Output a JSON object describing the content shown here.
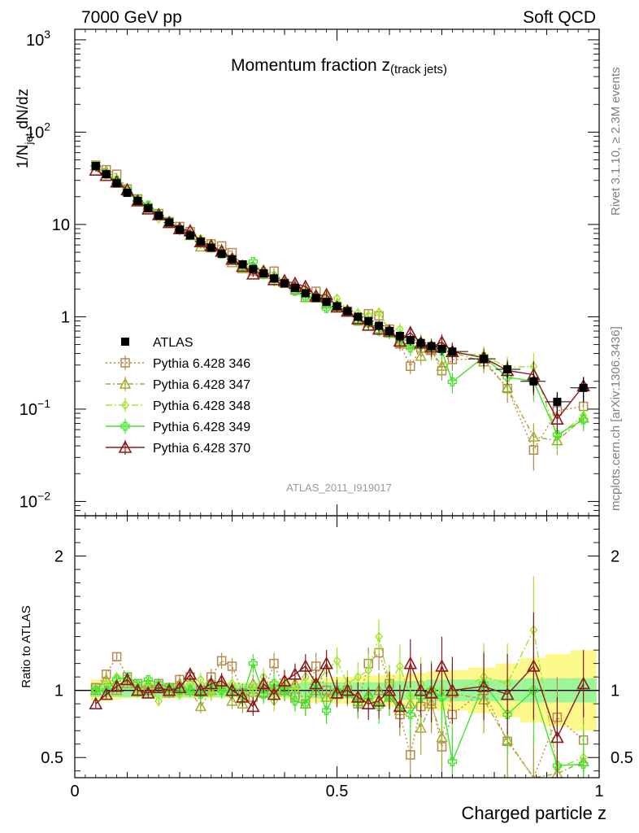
{
  "header": {
    "left": "7000 GeV pp",
    "right": "Soft QCD"
  },
  "side_labels": {
    "rivet": "Rivet 3.1.10, ≥ 2.3M events",
    "mcplots": "mcplots.cern.ch [arXiv:1306.3436]"
  },
  "colors": {
    "atlas": "#000000",
    "p346": "#b58a4a",
    "p347": "#a7a62c",
    "p348": "#9ee62a",
    "p349": "#3ee628",
    "p370": "#8b1a1a",
    "band_inner": "#9df59a",
    "band_outer": "#fcf98a"
  },
  "chart_data": {
    "type": "line",
    "title_main": "Momentum fraction ",
    "title_var": "z",
    "title_sub": "(track jets)",
    "ylabel_top": "1/N",
    "ylabel_sub": "jet",
    "ylabel_rest": " dN/dz",
    "ylabel_ratio": "Ratio to ATLAS",
    "xlabel": "Charged particle z",
    "analysis_id": "ATLAS_2011_I919017",
    "xlim": [
      0,
      1
    ],
    "ylim_main": [
      0.007,
      1300
    ],
    "yscale_main": "log",
    "ylim_ratio": [
      0.35,
      2.3
    ],
    "x_ticks": [
      "0",
      "0.5",
      "1"
    ],
    "y_ticks_main": [
      "10^-2",
      "10^-1",
      "1",
      "10",
      "10^2",
      "10^3"
    ],
    "y_ticks_ratio": [
      "0.5",
      "1",
      "2"
    ],
    "legend_position": "middle-left",
    "x": [
      0.04,
      0.06,
      0.08,
      0.1,
      0.12,
      0.14,
      0.16,
      0.18,
      0.2,
      0.22,
      0.24,
      0.26,
      0.28,
      0.3,
      0.32,
      0.34,
      0.36,
      0.38,
      0.4,
      0.42,
      0.44,
      0.46,
      0.48,
      0.5,
      0.52,
      0.54,
      0.56,
      0.58,
      0.6,
      0.62,
      0.64,
      0.66,
      0.68,
      0.7,
      0.72,
      0.78,
      0.825,
      0.875,
      0.92,
      0.97
    ],
    "atlas": [
      43,
      35,
      28,
      22,
      18,
      15,
      12.5,
      10.5,
      8.8,
      7.6,
      6.5,
      5.6,
      4.8,
      4.2,
      3.7,
      3.3,
      2.95,
      2.6,
      2.3,
      2.05,
      1.8,
      1.6,
      1.45,
      1.3,
      1.15,
      1.0,
      0.9,
      0.8,
      0.7,
      0.62,
      0.56,
      0.52,
      0.48,
      0.45,
      0.42,
      0.35,
      0.27,
      0.2,
      0.12,
      0.17
    ],
    "band_inner": [
      0.05,
      0.05,
      0.05,
      0.05,
      0.05,
      0.05,
      0.05,
      0.05,
      0.05,
      0.05,
      0.05,
      0.05,
      0.05,
      0.05,
      0.05,
      0.05,
      0.05,
      0.05,
      0.05,
      0.05,
      0.06,
      0.06,
      0.06,
      0.06,
      0.06,
      0.06,
      0.06,
      0.06,
      0.07,
      0.07,
      0.07,
      0.07,
      0.08,
      0.08,
      0.08,
      0.08,
      0.08,
      0.09,
      0.09,
      0.09
    ],
    "band_outer": [
      0.08,
      0.08,
      0.07,
      0.06,
      0.06,
      0.06,
      0.06,
      0.06,
      0.06,
      0.06,
      0.06,
      0.06,
      0.06,
      0.06,
      0.06,
      0.06,
      0.06,
      0.07,
      0.07,
      0.07,
      0.08,
      0.09,
      0.09,
      0.1,
      0.1,
      0.1,
      0.11,
      0.11,
      0.12,
      0.12,
      0.13,
      0.13,
      0.14,
      0.15,
      0.15,
      0.17,
      0.2,
      0.24,
      0.27,
      0.3
    ],
    "series": [
      {
        "key": "p346",
        "name": "Pythia 6.428 346",
        "marker": "square",
        "dash": "2,3",
        "ratio": [
          1.02,
          1.12,
          1.25,
          1.1,
          1.05,
          1.0,
          1.05,
          1.02,
          1.08,
          1.1,
          1.0,
          1.1,
          1.22,
          1.18,
          0.98,
          0.95,
          0.98,
          1.2,
          1.0,
          0.95,
          0.9,
          1.18,
          1.0,
          0.97,
          1.0,
          0.9,
          1.2,
          1.28,
          1.05,
          0.82,
          0.52,
          0.88,
          0.92,
          0.58,
          0.82,
          1.0,
          0.62,
          0.18,
          0.8,
          0.63
        ],
        "err": [
          0.03,
          0.03,
          0.03,
          0.03,
          0.03,
          0.03,
          0.04,
          0.04,
          0.04,
          0.05,
          0.05,
          0.06,
          0.06,
          0.06,
          0.07,
          0.07,
          0.07,
          0.08,
          0.08,
          0.08,
          0.09,
          0.1,
          0.1,
          0.1,
          0.1,
          0.11,
          0.12,
          0.13,
          0.14,
          0.16,
          0.18,
          0.2,
          0.22,
          0.22,
          0.25,
          0.25,
          0.3,
          0.4,
          0.3,
          0.25
        ]
      },
      {
        "key": "p347",
        "name": "Pythia 6.428 347",
        "marker": "triangle",
        "dash": "6,3,2,3",
        "ratio": [
          1.0,
          1.08,
          1.0,
          1.05,
          1.0,
          1.05,
          1.02,
          0.98,
          1.05,
          1.0,
          0.88,
          1.0,
          1.05,
          0.92,
          0.9,
          1.05,
          1.05,
          1.0,
          1.02,
          1.05,
          0.9,
          1.0,
          0.95,
          1.0,
          1.0,
          0.92,
          0.97,
          1.0,
          0.95,
          0.85,
          0.9,
          0.72,
          0.9,
          0.65,
          0.98,
          0.93,
          0.63,
          0.25,
          0.38,
          0.47
        ],
        "err": [
          0.03,
          0.03,
          0.03,
          0.03,
          0.03,
          0.03,
          0.04,
          0.04,
          0.04,
          0.05,
          0.05,
          0.06,
          0.06,
          0.06,
          0.07,
          0.07,
          0.07,
          0.08,
          0.08,
          0.08,
          0.09,
          0.1,
          0.1,
          0.1,
          0.1,
          0.11,
          0.12,
          0.13,
          0.14,
          0.16,
          0.18,
          0.2,
          0.22,
          0.22,
          0.25,
          0.25,
          0.3,
          0.4,
          0.3,
          0.25
        ]
      },
      {
        "key": "p348",
        "name": "Pythia 6.428 348",
        "marker": "diamond",
        "dash": "8,3,2,3",
        "ratio": [
          1.0,
          1.05,
          1.1,
          1.08,
          0.98,
          1.05,
          0.92,
          1.0,
          0.97,
          1.05,
          1.08,
          0.98,
          1.0,
          1.05,
          0.97,
          1.0,
          1.1,
          0.92,
          1.08,
          1.0,
          1.1,
          1.05,
          1.15,
          1.22,
          1.05,
          1.1,
          1.15,
          1.4,
          1.05,
          1.18,
          0.95,
          1.05,
          1.0,
          1.0,
          0.97,
          1.1,
          1.05,
          1.45,
          0.42,
          0.5
        ],
        "err": [
          0.03,
          0.03,
          0.03,
          0.03,
          0.03,
          0.03,
          0.04,
          0.04,
          0.04,
          0.05,
          0.05,
          0.06,
          0.06,
          0.06,
          0.07,
          0.07,
          0.07,
          0.08,
          0.08,
          0.08,
          0.09,
          0.1,
          0.1,
          0.1,
          0.1,
          0.11,
          0.12,
          0.13,
          0.14,
          0.16,
          0.18,
          0.2,
          0.22,
          0.22,
          0.25,
          0.25,
          0.3,
          0.4,
          0.3,
          0.25
        ]
      },
      {
        "key": "p349",
        "name": "Pythia 6.428 349",
        "marker": "cross",
        "dash": "",
        "ratio": [
          1.0,
          1.0,
          1.08,
          1.1,
          1.05,
          1.08,
          1.05,
          1.02,
          1.0,
          1.0,
          0.97,
          1.05,
          1.0,
          1.0,
          0.95,
          1.2,
          0.97,
          1.05,
          1.0,
          0.92,
          0.9,
          1.05,
          0.85,
          1.0,
          0.98,
          0.9,
          0.95,
          0.88,
          0.95,
          0.88,
          0.82,
          0.95,
          1.0,
          0.95,
          0.47,
          1.05,
          0.82,
          1.0,
          0.44,
          0.45
        ],
        "err": [
          0.03,
          0.03,
          0.03,
          0.03,
          0.03,
          0.03,
          0.04,
          0.04,
          0.04,
          0.05,
          0.05,
          0.06,
          0.06,
          0.06,
          0.07,
          0.07,
          0.07,
          0.08,
          0.08,
          0.08,
          0.09,
          0.1,
          0.1,
          0.1,
          0.1,
          0.11,
          0.12,
          0.13,
          0.14,
          0.16,
          0.18,
          0.2,
          0.22,
          0.22,
          0.25,
          0.25,
          0.3,
          0.4,
          0.3,
          0.25
        ]
      },
      {
        "key": "p370",
        "name": "Pythia 6.428 370",
        "marker": "triangle-open",
        "dash": "",
        "ratio": [
          0.9,
          0.97,
          1.03,
          1.08,
          1.0,
          0.98,
          1.02,
          1.0,
          1.02,
          1.12,
          1.0,
          1.05,
          1.07,
          1.0,
          0.95,
          0.88,
          1.05,
          0.97,
          1.07,
          1.12,
          1.18,
          1.05,
          1.2,
          0.98,
          1.0,
          0.95,
          0.9,
          0.92,
          1.0,
          0.88,
          1.2,
          1.0,
          0.98,
          1.18,
          1.0,
          1.03,
          0.97,
          1.18,
          0.65,
          1.05
        ],
        "err": [
          0.03,
          0.03,
          0.03,
          0.03,
          0.03,
          0.03,
          0.04,
          0.04,
          0.04,
          0.05,
          0.05,
          0.06,
          0.06,
          0.06,
          0.07,
          0.07,
          0.07,
          0.08,
          0.08,
          0.08,
          0.09,
          0.1,
          0.1,
          0.1,
          0.1,
          0.11,
          0.12,
          0.13,
          0.14,
          0.16,
          0.18,
          0.2,
          0.22,
          0.22,
          0.25,
          0.25,
          0.3,
          0.4,
          0.3,
          0.25
        ]
      }
    ],
    "legend": [
      {
        "key": "atlas",
        "label": "ATLAS"
      },
      {
        "key": "p346",
        "label": "Pythia 6.428 346"
      },
      {
        "key": "p347",
        "label": "Pythia 6.428 347"
      },
      {
        "key": "p348",
        "label": "Pythia 6.428 348"
      },
      {
        "key": "p349",
        "label": "Pythia 6.428 349"
      },
      {
        "key": "p370",
        "label": "Pythia 6.428 370"
      }
    ]
  }
}
